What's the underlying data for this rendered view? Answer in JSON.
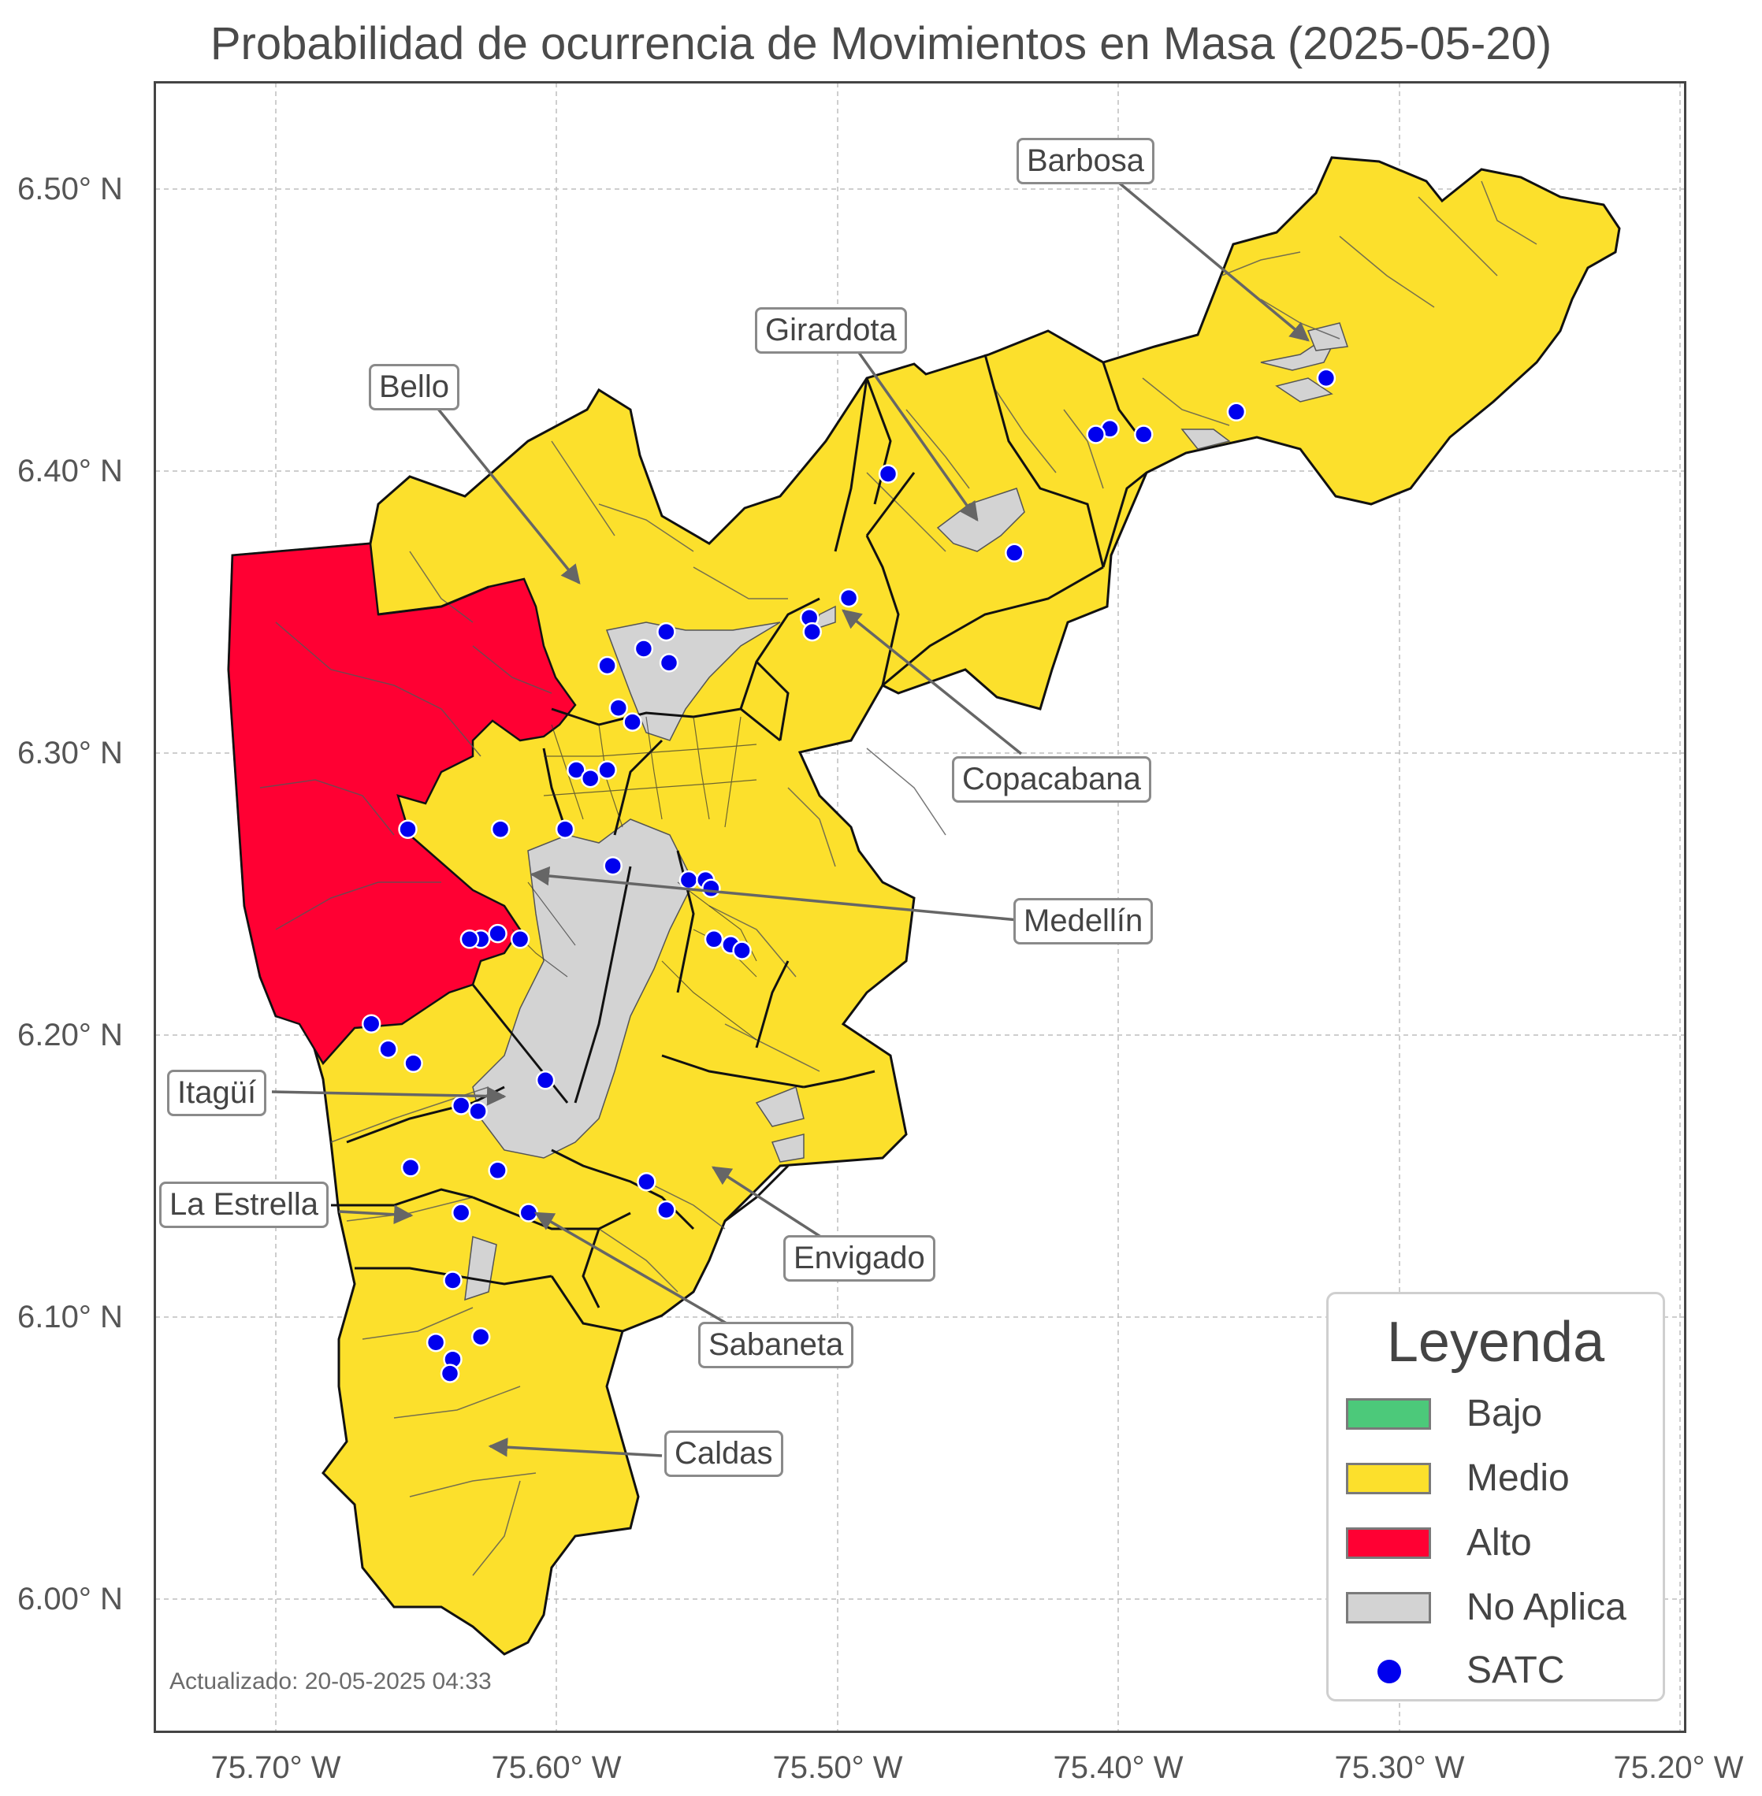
{
  "title": "Probabilidad de ocurrencia de Movimientos en Masa (2025-05-20)",
  "updated": "Actualizado: 20-05-2025 04:33",
  "y_ticks": [
    "6.50° N",
    "6.40° N",
    "6.30° N",
    "6.20° N",
    "6.10° N",
    "6.00° N"
  ],
  "x_ticks": [
    "75.70° W",
    "75.60° W",
    "75.50° W",
    "75.40° W",
    "75.30° W",
    "75.20° W"
  ],
  "municipalities": {
    "barbosa": "Barbosa",
    "girardota": "Girardota",
    "bello": "Bello",
    "copacabana": "Copacabana",
    "medellin": "Medellín",
    "itagui": "Itagüí",
    "la_estrella": "La Estrella",
    "envigado": "Envigado",
    "sabaneta": "Sabaneta",
    "caldas": "Caldas"
  },
  "legend": {
    "title": "Leyenda",
    "items": [
      {
        "label": "Bajo",
        "color": "#4cc97a"
      },
      {
        "label": "Medio",
        "color": "#fce02c"
      },
      {
        "label": "Alto",
        "color": "#ff0033"
      },
      {
        "label": "No Aplica",
        "color": "#d3d3d3"
      },
      {
        "label": "SATC",
        "color": "#0000ee"
      }
    ]
  },
  "colors": {
    "medio": "#fce02c",
    "alto": "#ff0033",
    "no_aplica": "#d3d3d3",
    "satc": "#0000ee"
  },
  "satc_stations_lon_lat": [
    [
      -75.326,
      6.433
    ],
    [
      -75.358,
      6.421
    ],
    [
      -75.391,
      6.413
    ],
    [
      -75.403,
      6.415
    ],
    [
      -75.408,
      6.413
    ],
    [
      -75.482,
      6.399
    ],
    [
      -75.437,
      6.371
    ],
    [
      -75.496,
      6.355
    ],
    [
      -75.51,
      6.348
    ],
    [
      -75.509,
      6.343
    ],
    [
      -75.561,
      6.343
    ],
    [
      -75.569,
      6.337
    ],
    [
      -75.56,
      6.332
    ],
    [
      -75.582,
      6.331
    ],
    [
      -75.578,
      6.316
    ],
    [
      -75.573,
      6.311
    ],
    [
      -75.593,
      6.294
    ],
    [
      -75.588,
      6.291
    ],
    [
      -75.582,
      6.294
    ],
    [
      -75.653,
      6.273
    ],
    [
      -75.62,
      6.273
    ],
    [
      -75.597,
      6.273
    ],
    [
      -75.58,
      6.26
    ],
    [
      -75.553,
      6.255
    ],
    [
      -75.547,
      6.255
    ],
    [
      -75.545,
      6.252
    ],
    [
      -75.544,
      6.234
    ],
    [
      -75.538,
      6.232
    ],
    [
      -75.534,
      6.23
    ],
    [
      -75.621,
      6.236
    ],
    [
      -75.613,
      6.234
    ],
    [
      -75.627,
      6.234
    ],
    [
      -75.631,
      6.234
    ],
    [
      -75.666,
      6.204
    ],
    [
      -75.66,
      6.195
    ],
    [
      -75.651,
      6.19
    ],
    [
      -75.604,
      6.184
    ],
    [
      -75.634,
      6.175
    ],
    [
      -75.628,
      6.173
    ],
    [
      -75.621,
      6.152
    ],
    [
      -75.652,
      6.153
    ],
    [
      -75.568,
      6.148
    ],
    [
      -75.561,
      6.138
    ],
    [
      -75.61,
      6.137
    ],
    [
      -75.634,
      6.137
    ],
    [
      -75.637,
      6.113
    ],
    [
      -75.643,
      6.091
    ],
    [
      -75.627,
      6.093
    ],
    [
      -75.637,
      6.085
    ],
    [
      -75.638,
      6.08
    ]
  ]
}
